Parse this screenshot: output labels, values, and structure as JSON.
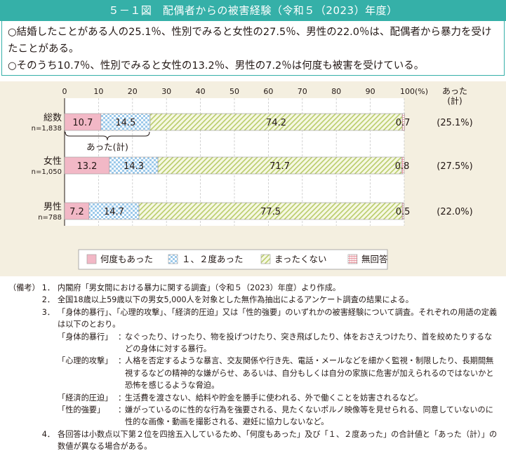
{
  "title": "５－１図　配偶者からの被害経験（令和５（2023）年度）",
  "summary": [
    "○結婚したことがある人の25.1％、性別でみると女性の27.5％、男性の22.0％は、配偶者から暴力を受けたことがある。",
    "○そのうち10.7％、性別でみると女性の13.2％、男性の7.2％は何度も被害を受けている。"
  ],
  "colors": {
    "title_bg": "#35b0a8",
    "panel_bg": "#f4efe0",
    "many_times": "#f2b8c6",
    "once_twice": "#cfe6f7",
    "never": "#e9f0c4",
    "no_answer": "#f6c7c7"
  },
  "chart_data": {
    "type": "bar",
    "orientation": "horizontal",
    "stacked": true,
    "xlim": [
      0,
      100
    ],
    "x_ticks": [
      "0",
      "10",
      "20",
      "30",
      "40",
      "50",
      "60",
      "70",
      "80",
      "90",
      "100(%)"
    ],
    "categories": [
      {
        "label": "総数",
        "n": "n=1,838",
        "total_label": "(25.1%)"
      },
      {
        "label": "女性",
        "n": "n=1,050",
        "total_label": "(27.5%)"
      },
      {
        "label": "男性",
        "n": "n=788",
        "total_label": "(22.0%)"
      }
    ],
    "series": [
      {
        "name": "何度もあった",
        "values": [
          10.7,
          13.2,
          7.2
        ],
        "labels": [
          "10.7",
          "13.2",
          "7.2"
        ],
        "pattern": "solid"
      },
      {
        "name": "１、２度あった",
        "values": [
          14.5,
          14.3,
          14.7
        ],
        "labels": [
          "14.5",
          "14.3",
          "14.7"
        ],
        "pattern": "checker"
      },
      {
        "name": "まったくない",
        "values": [
          74.2,
          71.7,
          77.5
        ],
        "labels": [
          "74.2",
          "71.7",
          "77.5"
        ],
        "pattern": "diagonal"
      },
      {
        "name": "無回答",
        "values": [
          0.7,
          0.8,
          0.5
        ],
        "labels": [
          "0.7",
          "0.8",
          "0.5"
        ],
        "pattern": "grid"
      }
    ],
    "right_header": "あった\n(計)",
    "brace_label": "あった(計)",
    "grid": true,
    "legend_position": "bottom"
  },
  "notes": {
    "prefix": "（備考）",
    "items": [
      {
        "num": "1．",
        "text": "内閣府「男女間における暴力に関する調査」（令和５（2023）年度）より作成。"
      },
      {
        "num": "2．",
        "text": "全国18歳以上59歳以下の男女5,000人を対象とした無作為抽出によるアンケート調査の結果による。"
      },
      {
        "num": "3．",
        "text": "「身体的暴行」、「心理的攻撃」、「経済的圧迫」又は「性的強要」のいずれかの被害経験について調査。それぞれの用語の定義は以下のとおり。"
      },
      {
        "num": "4．",
        "text": "各回答は小数点以下第２位を四捨五入しているため、「何度もあった」及び「１、２度あった」の合計値と「あった（計）」の数値が異なる場合がある。"
      }
    ],
    "definitions": [
      {
        "term": "「身体的暴行」",
        "text": "なぐったり、けったり、物を投げつけたり、突き飛ばしたり、体をおさえつけたり、首を絞めたりするなどの身体に対する暴行。"
      },
      {
        "term": "「心理的攻撃」",
        "text": "人格を否定するような暴言、交友関係や行き先、電話・メールなどを細かく監視・制限したり、長期間無視するなどの精神的な嫌がらせ、あるいは、自分もしくは自分の家族に危害が加えられるのではないかと恐怖を感じるような脅迫。"
      },
      {
        "term": "「経済的圧迫」",
        "text": "生活費を渡さない、給料や貯金を勝手に使われる、外で働くことを妨害されるなど。"
      },
      {
        "term": "「性的強要」",
        "text": "嫌がっているのに性的な行為を強要される、見たくないポルノ映像等を見せられる、同意していないのに性的な画像・動画を撮影される、避妊に協力しないなど。"
      }
    ]
  }
}
